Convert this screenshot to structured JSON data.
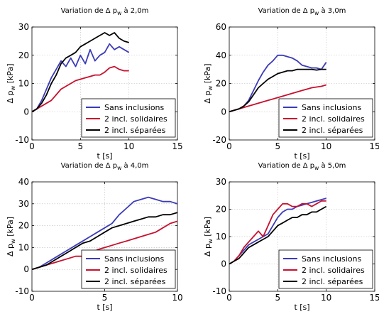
{
  "chart_data": [
    {
      "type": "line",
      "title": "Variation de Δ p_w à 2,0m",
      "xlabel": "t [s]",
      "ylabel": "Δ p_w [kPa]",
      "xlim": [
        0,
        15
      ],
      "ylim": [
        -10,
        30
      ],
      "xticks": [
        0,
        5,
        10,
        15
      ],
      "yticks": [
        -10,
        0,
        10,
        20,
        30
      ],
      "grid": true,
      "legend_position": "bottom-right",
      "series": [
        {
          "name": "Sans inclusions",
          "color": "#3b3bb8",
          "x": [
            0,
            0.5,
            1,
            1.5,
            2,
            2.5,
            3,
            3.5,
            4,
            4.5,
            5,
            5.5,
            6,
            6.5,
            7,
            7.5,
            8,
            8.5,
            9,
            9.5,
            10
          ],
          "y": [
            0,
            1,
            4,
            8,
            12,
            15,
            18,
            16,
            19,
            16,
            20,
            17,
            22,
            18,
            20,
            21,
            24,
            22,
            23,
            22,
            21
          ]
        },
        {
          "name": "2 incl. solidaires",
          "color": "#c8102e",
          "x": [
            0,
            0.5,
            1,
            1.5,
            2,
            2.5,
            3,
            3.5,
            4,
            4.5,
            5,
            5.5,
            6,
            6.5,
            7,
            7.5,
            8,
            8.5,
            9,
            9.5,
            10
          ],
          "y": [
            0,
            1,
            2,
            3,
            4,
            6,
            8,
            9,
            10,
            11,
            11.5,
            12,
            12.5,
            13,
            13,
            14,
            15.5,
            16,
            15,
            14.5,
            14.5
          ]
        },
        {
          "name": "2 incl. séparées",
          "color": "#000000",
          "x": [
            0,
            0.5,
            1,
            1.5,
            2,
            2.5,
            3,
            3.5,
            4,
            4.5,
            5,
            5.5,
            6,
            6.5,
            7,
            7.5,
            8,
            8.5,
            9,
            9.5,
            10
          ],
          "y": [
            0,
            1,
            3,
            6,
            10,
            13,
            17,
            19,
            20,
            21,
            23,
            24,
            25,
            26,
            27,
            28,
            27,
            28,
            26,
            25,
            24.5
          ]
        }
      ]
    },
    {
      "type": "line",
      "title": "Variation de Δ p_w à 3,0m",
      "xlabel": "t [s]",
      "ylabel": "Δ p_w [kPa]",
      "xlim": [
        0,
        15
      ],
      "ylim": [
        -20,
        60
      ],
      "xticks": [
        0,
        5,
        10,
        15
      ],
      "yticks": [
        -20,
        0,
        20,
        40,
        60
      ],
      "grid": true,
      "legend_position": "bottom-right",
      "series": [
        {
          "name": "Sans inclusions",
          "color": "#3b3bb8",
          "x": [
            0,
            0.5,
            1,
            1.5,
            2,
            2.5,
            3,
            3.5,
            4,
            4.5,
            5,
            5.5,
            6,
            6.5,
            7,
            7.5,
            8,
            8.5,
            9,
            9.5,
            10
          ],
          "y": [
            0,
            1,
            2,
            4,
            8,
            15,
            22,
            28,
            33,
            36,
            40,
            40,
            39,
            38,
            36,
            33,
            32,
            31,
            31,
            30,
            35
          ]
        },
        {
          "name": "2 incl. solidaires",
          "color": "#c8102e",
          "x": [
            0,
            0.5,
            1,
            1.5,
            2,
            2.5,
            3,
            3.5,
            4,
            4.5,
            5,
            5.5,
            6,
            6.5,
            7,
            7.5,
            8,
            8.5,
            9,
            9.5,
            10
          ],
          "y": [
            0,
            1,
            2,
            3,
            4,
            5,
            6,
            7,
            8,
            9,
            10,
            11,
            12,
            13,
            14,
            15,
            16,
            17,
            17.5,
            18,
            19
          ]
        },
        {
          "name": "2 incl. séparées",
          "color": "#000000",
          "x": [
            0,
            0.5,
            1,
            1.5,
            2,
            2.5,
            3,
            3.5,
            4,
            4.5,
            5,
            5.5,
            6,
            6.5,
            7,
            7.5,
            8,
            8.5,
            9,
            9.5,
            10
          ],
          "y": [
            0,
            1,
            2,
            4,
            7,
            12,
            17,
            20,
            23,
            25,
            27,
            28,
            29,
            29,
            30,
            30,
            30,
            30,
            29.5,
            30,
            30
          ]
        }
      ]
    },
    {
      "type": "line",
      "title": "Variation de Δ p_w à 4,0m",
      "xlabel": "t [s]",
      "ylabel": "Δ p_w [kPa]",
      "xlim": [
        0,
        10
      ],
      "ylim": [
        -10,
        40
      ],
      "xticks": [
        0,
        5,
        10
      ],
      "yticks": [
        -10,
        0,
        10,
        20,
        30,
        40
      ],
      "grid": true,
      "legend_position": "bottom-right",
      "series": [
        {
          "name": "Sans inclusions",
          "color": "#3b3bb8",
          "x": [
            0,
            0.5,
            1,
            1.5,
            2,
            2.5,
            3,
            3.5,
            4,
            4.5,
            5,
            5.5,
            6,
            6.5,
            7,
            7.5,
            8,
            8.5,
            9,
            9.5,
            10
          ],
          "y": [
            0,
            1,
            3,
            5,
            7,
            9,
            11,
            13,
            15,
            17,
            19,
            21,
            25,
            28,
            31,
            32,
            33,
            32,
            31,
            31,
            30
          ]
        },
        {
          "name": "2 incl. solidaires",
          "color": "#c8102e",
          "x": [
            0,
            0.5,
            1,
            1.5,
            2,
            2.5,
            3,
            3.5,
            4,
            4.5,
            5,
            5.5,
            6,
            6.5,
            7,
            7.5,
            8,
            8.5,
            9,
            9.5,
            10
          ],
          "y": [
            0,
            1,
            2,
            3,
            4,
            5,
            6,
            6,
            7,
            9,
            10,
            11,
            12,
            13,
            14,
            15,
            16,
            17,
            19,
            21,
            22
          ]
        },
        {
          "name": "2 incl. séparées",
          "color": "#000000",
          "x": [
            0,
            0.5,
            1,
            1.5,
            2,
            2.5,
            3,
            3.5,
            4,
            4.5,
            5,
            5.5,
            6,
            6.5,
            7,
            7.5,
            8,
            8.5,
            9,
            9.5,
            10
          ],
          "y": [
            0,
            1,
            2,
            4,
            6,
            8,
            10,
            12,
            13,
            15,
            17,
            19,
            20,
            21,
            22,
            23,
            24,
            24,
            25,
            25,
            26
          ]
        }
      ]
    },
    {
      "type": "line",
      "title": "Variation de Δ p_w à 5,0m",
      "xlabel": "t [s]",
      "ylabel": "Δ p_w [kPa]",
      "xlim": [
        0,
        15
      ],
      "ylim": [
        -10,
        30
      ],
      "xticks": [
        0,
        5,
        10,
        15
      ],
      "yticks": [
        -10,
        0,
        10,
        20,
        30
      ],
      "grid": true,
      "legend_position": "bottom-right",
      "series": [
        {
          "name": "Sans inclusions",
          "color": "#3b3bb8",
          "x": [
            0,
            0.5,
            1,
            1.5,
            2,
            2.5,
            3,
            3.5,
            4,
            4.5,
            5,
            5.5,
            6,
            6.5,
            7,
            7.5,
            8,
            8.5,
            9,
            9.5,
            10
          ],
          "y": [
            0,
            1,
            3,
            5,
            7,
            8,
            9,
            10,
            11,
            14,
            17,
            19,
            20,
            20,
            21,
            21.5,
            22,
            22.5,
            23,
            23.5,
            24
          ]
        },
        {
          "name": "2 incl. solidaires",
          "color": "#c8102e",
          "x": [
            0,
            0.5,
            1,
            1.5,
            2,
            2.5,
            3,
            3.5,
            4,
            4.5,
            5,
            5.5,
            6,
            6.5,
            7,
            7.5,
            8,
            8.5,
            9,
            9.5,
            10
          ],
          "y": [
            0,
            1,
            3,
            6,
            8,
            10,
            12,
            10,
            14,
            18,
            20,
            22,
            22,
            21,
            21,
            22,
            22,
            21,
            22,
            23,
            23
          ]
        },
        {
          "name": "2 incl. séparées",
          "color": "#000000",
          "x": [
            0,
            0.5,
            1,
            1.5,
            2,
            2.5,
            3,
            3.5,
            4,
            4.5,
            5,
            5.5,
            6,
            6.5,
            7,
            7.5,
            8,
            8.5,
            9,
            9.5,
            10
          ],
          "y": [
            0,
            1,
            2,
            4,
            6,
            7,
            8,
            9,
            10,
            12,
            14,
            15,
            16,
            17,
            17,
            18,
            18,
            19,
            19,
            20,
            21
          ]
        }
      ]
    }
  ]
}
